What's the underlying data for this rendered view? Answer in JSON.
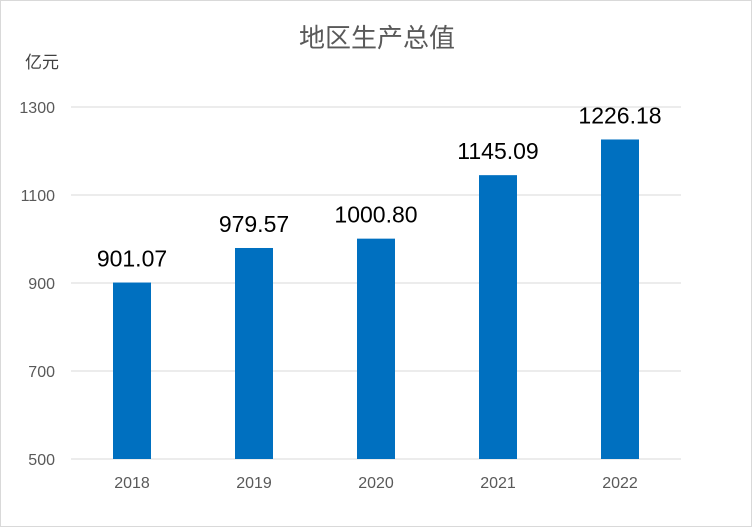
{
  "chart_data": {
    "type": "bar",
    "title": "地区生产总值",
    "ylabel": "亿元",
    "xlabel": "",
    "categories": [
      "2018",
      "2019",
      "2020",
      "2021",
      "2022"
    ],
    "values": [
      901.07,
      979.57,
      1000.8,
      1145.09,
      1226.18
    ],
    "data_labels": [
      "901.07",
      "979.57",
      "1000.80",
      "1145.09",
      "1226.18"
    ],
    "ylim": [
      500,
      1300
    ],
    "yticks": [
      "500",
      "700",
      "900",
      "1100",
      "1300"
    ],
    "grid": true,
    "legend": "none",
    "bar_color": "#0070C0",
    "grid_color": "#d9d9d9"
  }
}
